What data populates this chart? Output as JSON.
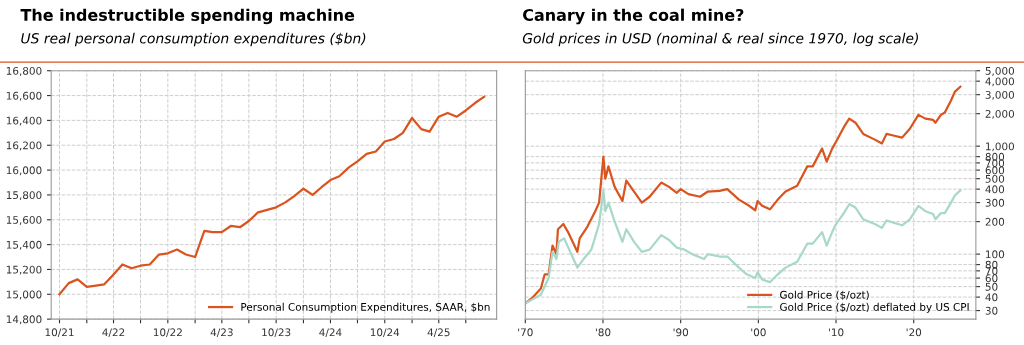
{
  "chart_data": [
    {
      "type": "line",
      "title": "The indestructible spending machine",
      "subtitle": "US real personal consumption expenditures ($bn)",
      "x": [
        "2021-10",
        "2021-11",
        "2021-12",
        "2022-01",
        "2022-02",
        "2022-03",
        "2022-04",
        "2022-05",
        "2022-06",
        "2022-07",
        "2022-08",
        "2022-09",
        "2022-10",
        "2022-11",
        "2022-12",
        "2023-01",
        "2023-02",
        "2023-03",
        "2023-04",
        "2023-05",
        "2023-06",
        "2023-07",
        "2023-08",
        "2023-09",
        "2023-10",
        "2023-11",
        "2023-12",
        "2024-01",
        "2024-02",
        "2024-03",
        "2024-04",
        "2024-05",
        "2024-06",
        "2024-07",
        "2024-08",
        "2024-09",
        "2024-10",
        "2024-11",
        "2024-12",
        "2025-01",
        "2025-02",
        "2025-03",
        "2025-04",
        "2025-05",
        "2025-06",
        "2025-07",
        "2025-08",
        "2025-09"
      ],
      "series": [
        {
          "name": "Personal Consumption Expenditures, SAAR, $bn",
          "color": "#d9541e",
          "values": [
            15000,
            15090,
            15120,
            15060,
            15070,
            15080,
            15160,
            15240,
            15210,
            15230,
            15240,
            15320,
            15330,
            15360,
            15320,
            15300,
            15510,
            15500,
            15500,
            15550,
            15540,
            15590,
            15660,
            15680,
            15700,
            15740,
            15790,
            15850,
            15800,
            15860,
            15920,
            15950,
            16020,
            16070,
            16130,
            16150,
            16230,
            16250,
            16300,
            16420,
            16330,
            16310,
            16430,
            16460,
            16430,
            16480,
            16540,
            16590
          ]
        }
      ],
      "xlim": [
        "2021-09-03",
        "2025-10-13"
      ],
      "xticks": [
        {
          "value": "2021-10",
          "label": "10/21"
        },
        {
          "value": "2022-01",
          "label": null
        },
        {
          "value": "2022-04",
          "label": "4/22"
        },
        {
          "value": "2022-07",
          "label": null
        },
        {
          "value": "2022-10",
          "label": "10/22"
        },
        {
          "value": "2023-01",
          "label": null
        },
        {
          "value": "2023-04",
          "label": "4/23"
        },
        {
          "value": "2023-07",
          "label": null
        },
        {
          "value": "2023-10",
          "label": "10/23"
        },
        {
          "value": "2024-01",
          "label": null
        },
        {
          "value": "2024-04",
          "label": "4/24"
        },
        {
          "value": "2024-07",
          "label": null
        },
        {
          "value": "2024-10",
          "label": "10/24"
        },
        {
          "value": "2025-01",
          "label": null
        },
        {
          "value": "2025-04",
          "label": "4/25"
        },
        {
          "value": "2025-07",
          "label": null
        }
      ],
      "ylim": [
        14800,
        16800
      ],
      "yticks": [
        {
          "value": 14800,
          "label": "14,800"
        },
        {
          "value": 15000,
          "label": "15,000"
        },
        {
          "value": 15200,
          "label": "15,200"
        },
        {
          "value": 15400,
          "label": "15,400"
        },
        {
          "value": 15600,
          "label": "15,600"
        },
        {
          "value": 15800,
          "label": "15,800"
        },
        {
          "value": 16000,
          "label": "16,000"
        },
        {
          "value": 16200,
          "label": "16,200"
        },
        {
          "value": 16400,
          "label": "16,400"
        },
        {
          "value": 16600,
          "label": "16,600"
        },
        {
          "value": 16800,
          "label": "16,800"
        }
      ],
      "grid": true,
      "legend": "bottom right",
      "line_style": "solid",
      "marker": "none"
    },
    {
      "type": "line",
      "title": "Canary in the coal mine?",
      "subtitle": "Gold prices in USD (nominal & real since 1970, log scale)",
      "log": "y",
      "series": [
        {
          "name": "Gold Price ($/ozt)",
          "color": "#d9541e",
          "x": [
            1970,
            1971,
            1972,
            1972.5,
            1973,
            1973.5,
            1974,
            1974.2,
            1974.9,
            1975.5,
            1976.7,
            1977,
            1978,
            1979,
            1979.5,
            1980.05,
            1980.3,
            1980.7,
            1981.5,
            1982.5,
            1983,
            1984,
            1985,
            1986,
            1987.5,
            1988.5,
            1989.5,
            1990,
            1991,
            1992.5,
            1993.5,
            1995,
            1996,
            1997.5,
            1998.5,
            1999.6,
            1999.9,
            2000.5,
            2001.5,
            2002.5,
            2003.5,
            2005,
            2006.3,
            2007,
            2008.2,
            2008.8,
            2009.5,
            2010,
            2011,
            2011.7,
            2012.5,
            2013.5,
            2015,
            2015.9,
            2016.5,
            2017.5,
            2018.5,
            2019.5,
            2020.6,
            2021.5,
            2022.5,
            2022.8,
            2023.5,
            2024,
            2024.8,
            2025.3,
            2026
          ],
          "values": [
            35,
            40,
            48,
            65,
            65,
            120,
            100,
            170,
            190,
            160,
            105,
            140,
            180,
            250,
            300,
            800,
            500,
            650,
            420,
            310,
            480,
            380,
            300,
            340,
            460,
            420,
            370,
            400,
            360,
            340,
            380,
            385,
            400,
            320,
            290,
            255,
            310,
            280,
            260,
            320,
            380,
            430,
            650,
            650,
            950,
            720,
            950,
            1100,
            1500,
            1800,
            1650,
            1300,
            1150,
            1060,
            1300,
            1250,
            1200,
            1450,
            1950,
            1800,
            1750,
            1650,
            1950,
            2050,
            2650,
            3200,
            3550
          ]
        },
        {
          "name": "Gold Price ($/ozt) deflated by US CPI",
          "color": "#a8d8c8",
          "x": [
            1970,
            1972,
            1973,
            1973.5,
            1974,
            1974.3,
            1975,
            1976.7,
            1977.5,
            1978.5,
            1979.5,
            1980.05,
            1980.3,
            1980.7,
            1981.5,
            1982.5,
            1983,
            1984,
            1985,
            1986,
            1987.5,
            1988.5,
            1989.5,
            1990.5,
            1991.5,
            1993,
            1993.5,
            1995,
            1996,
            1997.5,
            1998.5,
            1999.6,
            1999.9,
            2000.5,
            2001.5,
            2002.5,
            2003.5,
            2005,
            2006.3,
            2007,
            2008.2,
            2008.8,
            2009.5,
            2010,
            2011,
            2011.7,
            2012.5,
            2013.5,
            2015,
            2015.9,
            2016.5,
            2017.5,
            2018.5,
            2019.5,
            2020.6,
            2021.5,
            2022.5,
            2022.8,
            2023.5,
            2024,
            2024.8,
            2025.3,
            2026
          ],
          "values": [
            35,
            42,
            60,
            105,
            90,
            130,
            140,
            75,
            90,
            110,
            190,
            390,
            250,
            300,
            200,
            130,
            170,
            130,
            105,
            110,
            150,
            135,
            115,
            110,
            100,
            90,
            100,
            95,
            95,
            75,
            65,
            60,
            68,
            58,
            55,
            65,
            75,
            85,
            125,
            125,
            160,
            120,
            160,
            190,
            240,
            290,
            270,
            210,
            190,
            175,
            205,
            195,
            185,
            210,
            280,
            250,
            235,
            210,
            240,
            240,
            300,
            350,
            390
          ]
        }
      ],
      "xlim": [
        1970,
        2028
      ],
      "xticks": [
        {
          "value": 1970,
          "label": "'70"
        },
        {
          "value": 1980,
          "label": "'80"
        },
        {
          "value": 1990,
          "label": "'90"
        },
        {
          "value": 2000,
          "label": "'00"
        },
        {
          "value": 2010,
          "label": "'10"
        },
        {
          "value": 2020,
          "label": "'20"
        }
      ],
      "ylim": [
        25,
        5000
      ],
      "yticks": [
        30,
        40,
        50,
        60,
        70,
        80,
        100,
        200,
        300,
        400,
        500,
        600,
        700,
        800,
        {
          "value": 1000,
          "label": "1,000"
        },
        {
          "value": 2000,
          "label": "2,000"
        },
        {
          "value": 3000,
          "label": "3,000"
        },
        {
          "value": 4000,
          "label": "4,000"
        },
        {
          "value": 5000,
          "label": "5,000"
        }
      ],
      "grid": true,
      "legend": "bottom right",
      "line_style": "solid",
      "marker": "none"
    }
  ]
}
